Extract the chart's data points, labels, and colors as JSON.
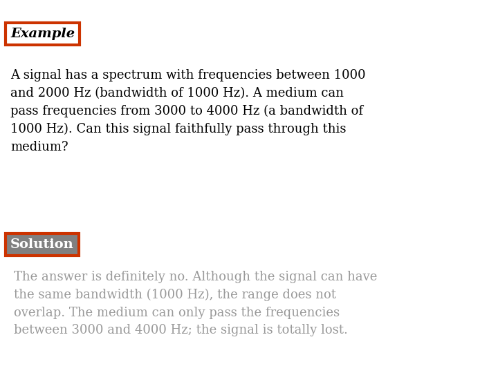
{
  "background_color": "#ffffff",
  "example_label": "Example",
  "example_box_color": "#cc3300",
  "example_text_color": "#000000",
  "body_text": "A signal has a spectrum with frequencies between 1000\nand 2000 Hz (bandwidth of 1000 Hz). A medium can\npass frequencies from 3000 to 4000 Hz (a bandwidth of\n1000 Hz). Can this signal faithfully pass through this\nmedium?",
  "body_text_color": "#000000",
  "solution_label": "Solution",
  "solution_box_fill": "#808080",
  "solution_box_border": "#cc3300",
  "solution_text_color": "#ffffff",
  "answer_text": "The answer is definitely no. Although the signal can have\nthe same bandwidth (1000 Hz), the range does not\noverlap. The medium can only pass the frequencies\nbetween 3000 and 4000 Hz; the signal is totally lost.",
  "answer_text_color": "#999999",
  "font_family": "serif",
  "example_fontsize": 14,
  "body_fontsize": 13,
  "solution_fontsize": 14,
  "answer_fontsize": 13
}
